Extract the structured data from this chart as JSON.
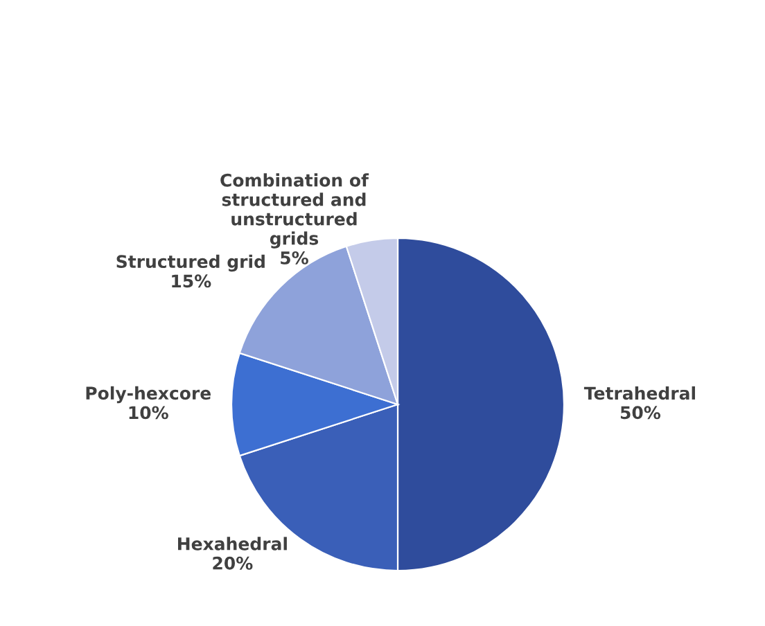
{
  "chart_data": {
    "type": "pie",
    "categories": [
      "Tetrahedral",
      "Hexahedral",
      "Poly-hexcore",
      "Structured grid",
      "Combination of\nstructured and\nunstructured\ngrids"
    ],
    "values": [
      50,
      20,
      10,
      15,
      5
    ],
    "value_labels": [
      "50%",
      "20%",
      "10%",
      "15%",
      "5%"
    ],
    "colors": [
      "#2f4c9c",
      "#3a5fb8",
      "#3d6fd2",
      "#8ea2da",
      "#c4cbe9"
    ],
    "legend": false
  }
}
